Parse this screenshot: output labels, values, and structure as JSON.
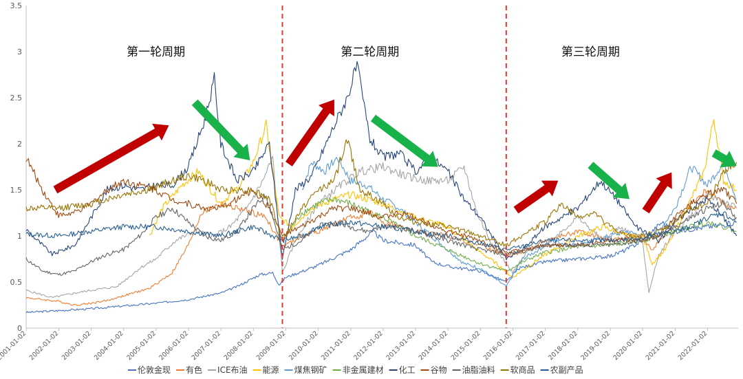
{
  "chart_data": {
    "type": "line",
    "title": "",
    "xlabel": "",
    "ylabel": "",
    "ylim": [
      0,
      3.5
    ],
    "y_ticks": [
      0,
      0.5,
      1,
      1.5,
      2,
      2.5,
      3,
      3.5
    ],
    "y_tick_labels": [
      "0",
      "0.5",
      "1",
      "1.5",
      "2",
      "2.5",
      "3",
      "3.5"
    ],
    "x_range": [
      2001.0,
      2022.95
    ],
    "x_ticks": [
      "2001-01-02",
      "2002-01-02",
      "2003-01-02",
      "2004-01-02",
      "2005-01-02",
      "2006-01-02",
      "2007-01-02",
      "2008-01-02",
      "2009-01-02",
      "2010-01-02",
      "2011-01-02",
      "2012-01-02",
      "2013-01-02",
      "2014-01-02",
      "2015-01-02",
      "2016-01-02",
      "2017-01-02",
      "2018-01-02",
      "2019-01-02",
      "2020-01-02",
      "2021-01-02",
      "2022-01-02"
    ],
    "grid": false,
    "legend_position": "bottom",
    "cycle_dividers": [
      2008.9,
      2015.8
    ],
    "cycle_dividers_color": "#e8372c",
    "cycles": [
      {
        "label": "第一轮周期",
        "x": 2005.0,
        "y": 3.0
      },
      {
        "label": "第二轮周期",
        "x": 2011.6,
        "y": 3.0
      },
      {
        "label": "第三轮周期",
        "x": 2018.4,
        "y": 3.0
      }
    ],
    "trend_arrows": [
      {
        "direction": "up",
        "color": "#c00000",
        "from": [
          2001.9,
          1.5
        ],
        "to": [
          2005.4,
          2.2
        ]
      },
      {
        "direction": "down",
        "color": "#19b14a",
        "from": [
          2006.2,
          2.45
        ],
        "to": [
          2007.9,
          1.82
        ]
      },
      {
        "direction": "up",
        "color": "#c00000",
        "from": [
          2009.1,
          1.78
        ],
        "to": [
          2010.5,
          2.48
        ]
      },
      {
        "direction": "down",
        "color": "#19b14a",
        "from": [
          2011.7,
          2.28
        ],
        "to": [
          2013.7,
          1.75
        ]
      },
      {
        "direction": "up",
        "color": "#c00000",
        "from": [
          2016.1,
          1.28
        ],
        "to": [
          2017.4,
          1.6
        ]
      },
      {
        "direction": "down",
        "color": "#19b14a",
        "from": [
          2018.4,
          1.77
        ],
        "to": [
          2019.6,
          1.4
        ]
      },
      {
        "direction": "up",
        "color": "#c00000",
        "from": [
          2020.1,
          1.27
        ],
        "to": [
          2020.9,
          1.69
        ]
      },
      {
        "direction": "down",
        "color": "#19b14a",
        "from": [
          2022.2,
          1.9
        ],
        "to": [
          2022.9,
          1.76
        ]
      }
    ],
    "series": [
      {
        "name": "伦敦金现",
        "color": "#4472c4",
        "x": [
          2001.0,
          2002.0,
          2003.0,
          2004.0,
          2005.0,
          2006.0,
          2007.0,
          2007.5,
          2008.2,
          2008.6,
          2008.8,
          2009.0,
          2010.0,
          2011.0,
          2011.7,
          2012.0,
          2013.0,
          2013.5,
          2014.0,
          2015.0,
          2015.8,
          2016.2,
          2017.0,
          2018.0,
          2019.0,
          2019.5,
          2020.0,
          2020.6,
          2021.0,
          2022.0,
          2022.5,
          2022.9
        ],
        "values": [
          0.17,
          0.19,
          0.21,
          0.24,
          0.27,
          0.31,
          0.38,
          0.45,
          0.58,
          0.6,
          0.47,
          0.55,
          0.68,
          0.85,
          1.05,
          0.95,
          0.9,
          0.72,
          0.67,
          0.62,
          0.5,
          0.65,
          0.72,
          0.75,
          0.78,
          0.85,
          0.95,
          1.15,
          1.05,
          1.1,
          1.12,
          1.15
        ]
      },
      {
        "name": "有色",
        "color": "#ed7d31",
        "x": [
          2001.0,
          2002.0,
          2002.5,
          2003.0,
          2003.5,
          2004.0,
          2004.8,
          2005.5,
          2006.0,
          2006.4,
          2007.0,
          2007.5,
          2008.0,
          2008.4,
          2008.9,
          2009.5,
          2010.0,
          2011.0,
          2011.7,
          2012.0,
          2013.0,
          2014.0,
          2015.0,
          2015.9,
          2016.5,
          2017.0,
          2018.0,
          2019.0,
          2020.0,
          2020.3,
          2021.0,
          2021.5,
          2022.0,
          2022.5,
          2022.9
        ],
        "values": [
          0.33,
          0.29,
          0.25,
          0.27,
          0.3,
          0.35,
          0.43,
          0.6,
          0.9,
          1.25,
          1.35,
          1.3,
          1.25,
          1.2,
          0.88,
          1.0,
          1.05,
          1.2,
          1.25,
          1.15,
          1.05,
          1.0,
          0.9,
          0.78,
          0.85,
          0.95,
          1.05,
          0.95,
          1.0,
          0.85,
          1.15,
          1.35,
          1.5,
          1.35,
          1.3
        ]
      },
      {
        "name": "ICE布油",
        "color": "#a5a5a5",
        "x": [
          2001.0,
          2001.8,
          2002.5,
          2003.0,
          2003.8,
          2004.5,
          2005.0,
          2005.6,
          2006.2,
          2006.8,
          2007.3,
          2007.8,
          2008.3,
          2008.6,
          2008.9,
          2009.3,
          2010.0,
          2010.7,
          2011.3,
          2012.0,
          2012.7,
          2013.3,
          2014.0,
          2014.5,
          2014.9,
          2015.3,
          2016.0,
          2016.5,
          2017.0,
          2018.0,
          2018.8,
          2019.3,
          2020.0,
          2020.2,
          2020.5,
          2021.0,
          2021.6,
          2022.0,
          2022.4,
          2022.9
        ],
        "values": [
          0.41,
          0.33,
          0.38,
          0.41,
          0.45,
          0.65,
          0.75,
          0.95,
          1.05,
          1.0,
          1.1,
          1.3,
          1.6,
          1.85,
          0.6,
          0.95,
          1.35,
          1.55,
          1.7,
          1.75,
          1.65,
          1.6,
          1.6,
          1.75,
          1.25,
          0.95,
          0.6,
          0.85,
          0.9,
          1.2,
          0.95,
          1.1,
          0.95,
          0.38,
          0.8,
          1.05,
          1.25,
          1.45,
          1.4,
          1.3
        ]
      },
      {
        "name": "能源",
        "color": "#ffc000",
        "x": [
          2004.8,
          2005.2,
          2005.8,
          2006.3,
          2007.0,
          2007.6,
          2008.0,
          2008.4,
          2008.8,
          2009.2,
          2009.8,
          2010.5,
          2011.0,
          2012.0,
          2013.0,
          2014.0,
          2014.9,
          2015.5,
          2016.0,
          2016.8,
          2017.5,
          2018.0,
          2018.8,
          2019.5,
          2020.0,
          2020.3,
          2020.7,
          2021.0,
          2021.5,
          2021.9,
          2022.2,
          2022.5,
          2022.9
        ],
        "values": [
          1.0,
          1.3,
          1.55,
          1.7,
          1.35,
          1.55,
          1.8,
          2.2,
          1.2,
          1.1,
          1.3,
          1.4,
          1.45,
          1.35,
          1.2,
          1.1,
          0.85,
          0.7,
          0.55,
          0.75,
          0.9,
          1.0,
          1.1,
          1.0,
          1.0,
          0.7,
          0.85,
          1.05,
          1.4,
          1.7,
          2.28,
          1.6,
          1.5
        ]
      },
      {
        "name": "煤焦钢矿",
        "color": "#5b9bd5",
        "x": [
          2009.5,
          2009.8,
          2010.2,
          2010.6,
          2011.0,
          2011.5,
          2012.0,
          2012.5,
          2013.0,
          2013.5,
          2014.0,
          2014.5,
          2015.0,
          2015.8,
          2016.3,
          2016.8,
          2017.2,
          2017.8,
          2018.5,
          2019.0,
          2019.5,
          2020.0,
          2020.5,
          2021.0,
          2021.5,
          2022.0,
          2022.5,
          2022.9
        ],
        "values": [
          1.5,
          1.8,
          1.7,
          1.85,
          1.6,
          1.55,
          1.4,
          1.3,
          1.15,
          1.0,
          0.85,
          0.7,
          0.65,
          0.45,
          0.75,
          0.85,
          0.95,
          0.9,
          0.95,
          1.0,
          1.05,
          1.0,
          1.05,
          1.3,
          1.75,
          1.55,
          1.8,
          1.4
        ]
      },
      {
        "name": "非金属建材",
        "color": "#70ad47",
        "x": [
          2009.0,
          2009.5,
          2010.0,
          2010.5,
          2011.0,
          2012.0,
          2013.0,
          2014.0,
          2015.0,
          2015.8,
          2016.5,
          2017.0,
          2018.0,
          2019.0,
          2020.0,
          2020.5,
          2021.0,
          2021.5,
          2022.0,
          2022.5,
          2022.9
        ],
        "values": [
          1.0,
          1.25,
          1.35,
          1.4,
          1.35,
          1.2,
          1.0,
          0.85,
          0.7,
          0.62,
          0.75,
          0.82,
          0.88,
          0.9,
          0.95,
          1.0,
          1.05,
          1.1,
          1.15,
          1.1,
          1.05
        ]
      },
      {
        "name": "化工",
        "color": "#264478",
        "x": [
          2001.0,
          2001.8,
          2002.5,
          2003.0,
          2003.5,
          2004.0,
          2004.5,
          2005.0,
          2005.5,
          2006.0,
          2006.5,
          2006.8,
          2007.0,
          2007.5,
          2008.0,
          2008.5,
          2008.9,
          2009.3,
          2009.8,
          2010.5,
          2010.9,
          2011.2,
          2011.6,
          2012.0,
          2012.5,
          2013.0,
          2013.5,
          2014.0,
          2014.5,
          2015.0,
          2015.8,
          2016.3,
          2017.0,
          2018.0,
          2018.7,
          2019.2,
          2019.8,
          2020.0,
          2020.5,
          2021.0,
          2021.5,
          2022.0,
          2022.5,
          2022.9
        ],
        "values": [
          1.07,
          0.8,
          0.9,
          1.2,
          1.5,
          1.55,
          1.5,
          1.55,
          1.55,
          1.75,
          2.25,
          2.7,
          2.0,
          1.6,
          1.7,
          2.0,
          0.75,
          1.5,
          1.65,
          2.2,
          2.5,
          2.85,
          2.05,
          1.85,
          1.9,
          1.7,
          1.85,
          1.7,
          1.4,
          1.2,
          0.75,
          0.85,
          1.1,
          1.3,
          1.6,
          1.4,
          1.1,
          1.05,
          0.95,
          1.15,
          1.3,
          1.4,
          1.2,
          1.0
        ]
      },
      {
        "name": "谷物",
        "color": "#9e480e",
        "x": [
          2001.0,
          2001.5,
          2002.0,
          2002.5,
          2003.0,
          2003.5,
          2004.0,
          2004.5,
          2005.0,
          2005.5,
          2006.0,
          2006.5,
          2007.0,
          2007.5,
          2008.0,
          2008.5,
          2008.9,
          2009.5,
          2010.0,
          2010.5,
          2011.0,
          2011.5,
          2012.0,
          2012.5,
          2013.0,
          2014.0,
          2015.0,
          2015.8,
          2016.5,
          2017.0,
          2018.0,
          2019.0,
          2020.0,
          2020.5,
          2021.0,
          2021.5,
          2022.0,
          2022.5,
          2022.9
        ],
        "values": [
          1.85,
          1.5,
          1.22,
          1.25,
          1.35,
          1.5,
          1.6,
          1.55,
          1.5,
          1.4,
          1.35,
          1.3,
          1.3,
          1.4,
          1.5,
          1.3,
          1.0,
          1.1,
          1.2,
          1.3,
          1.3,
          1.25,
          1.2,
          1.25,
          1.2,
          1.05,
          0.95,
          0.82,
          0.85,
          0.9,
          0.9,
          0.95,
          0.95,
          1.0,
          1.2,
          1.35,
          1.45,
          1.5,
          1.35
        ]
      },
      {
        "name": "油脂油料",
        "color": "#636363",
        "x": [
          2001.0,
          2001.5,
          2002.0,
          2002.5,
          2003.0,
          2003.5,
          2004.0,
          2004.5,
          2005.0,
          2005.5,
          2006.0,
          2006.5,
          2007.0,
          2007.5,
          2008.0,
          2008.4,
          2008.9,
          2009.5,
          2010.0,
          2010.5,
          2011.0,
          2011.5,
          2012.0,
          2012.5,
          2013.0,
          2014.0,
          2015.0,
          2015.8,
          2016.5,
          2017.0,
          2018.0,
          2019.0,
          2020.0,
          2020.5,
          2021.0,
          2021.5,
          2022.0,
          2022.5,
          2022.9
        ],
        "values": [
          0.75,
          0.62,
          0.58,
          0.62,
          0.72,
          0.8,
          0.85,
          1.0,
          1.2,
          1.3,
          1.15,
          1.0,
          0.95,
          1.05,
          1.3,
          1.45,
          0.85,
          0.95,
          1.1,
          1.15,
          1.1,
          1.05,
          1.1,
          1.1,
          1.05,
          0.95,
          0.85,
          0.8,
          0.85,
          0.9,
          0.9,
          0.9,
          0.95,
          1.0,
          1.1,
          1.2,
          1.3,
          1.35,
          1.2
        ]
      },
      {
        "name": "软商品",
        "color": "#997300",
        "x": [
          2001.0,
          2002.0,
          2003.0,
          2004.0,
          2004.8,
          2005.5,
          2006.0,
          2006.5,
          2007.0,
          2007.5,
          2008.0,
          2008.5,
          2008.9,
          2009.5,
          2010.0,
          2010.5,
          2010.9,
          2011.3,
          2012.0,
          2012.5,
          2013.0,
          2014.0,
          2015.0,
          2015.8,
          2016.5,
          2017.0,
          2017.5,
          2018.0,
          2018.5,
          2019.0,
          2019.5,
          2020.0,
          2020.5,
          2021.0,
          2021.5,
          2022.0,
          2022.5,
          2022.9
        ],
        "values": [
          1.3,
          1.3,
          1.35,
          1.45,
          1.5,
          1.6,
          1.65,
          1.6,
          1.5,
          1.5,
          1.5,
          1.4,
          0.95,
          1.3,
          1.5,
          1.6,
          2.05,
          1.5,
          1.35,
          1.2,
          1.15,
          1.1,
          1.0,
          0.9,
          1.05,
          1.15,
          1.35,
          1.2,
          1.25,
          1.1,
          1.0,
          1.0,
          1.05,
          1.15,
          1.3,
          1.35,
          1.7,
          1.8
        ]
      },
      {
        "name": "农副产品",
        "color": "#255e91",
        "x": [
          2001.0,
          2002.0,
          2003.0,
          2004.0,
          2005.0,
          2006.0,
          2007.0,
          2008.0,
          2008.9,
          2009.5,
          2010.0,
          2011.0,
          2012.0,
          2013.0,
          2014.0,
          2015.0,
          2015.8,
          2016.5,
          2017.0,
          2018.0,
          2019.0,
          2020.0,
          2020.5,
          2021.0,
          2021.5,
          2022.0,
          2022.5,
          2022.9
        ],
        "values": [
          1.02,
          1.0,
          1.05,
          1.1,
          1.1,
          1.05,
          1.0,
          1.1,
          0.95,
          1.0,
          1.1,
          1.15,
          1.1,
          1.05,
          1.0,
          0.92,
          0.85,
          0.9,
          0.95,
          0.95,
          0.95,
          0.98,
          1.02,
          1.05,
          1.1,
          1.2,
          1.25,
          1.15
        ]
      }
    ]
  }
}
